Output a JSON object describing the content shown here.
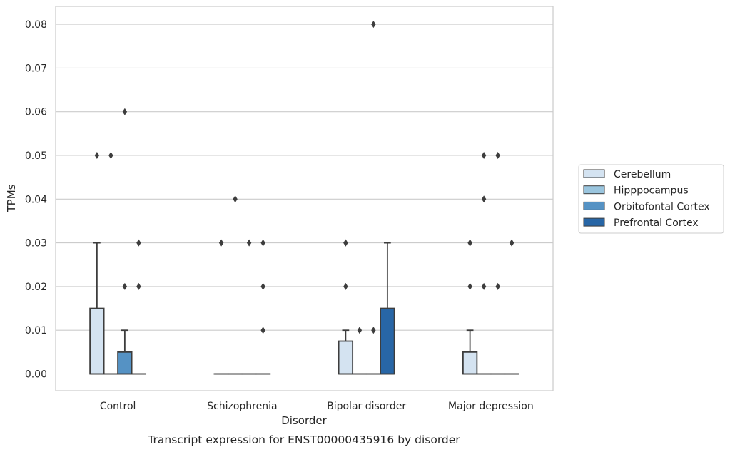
{
  "chart_data": {
    "type": "box",
    "caption": "Transcript expression for ENST00000435916 by disorder",
    "xlabel": "Disorder",
    "ylabel": "TPMs",
    "ylim": [
      -0.004,
      0.084
    ],
    "yticks": [
      "0.00",
      "0.01",
      "0.02",
      "0.03",
      "0.04",
      "0.05",
      "0.06",
      "0.07",
      "0.08"
    ],
    "categories": [
      "Control",
      "Schizophrenia",
      "Bipolar disorder",
      "Major depression"
    ],
    "grid": "horizontal",
    "legend_position": "right",
    "series": [
      {
        "name": "Cerebellum",
        "color": "#d4e3f1",
        "boxes": [
          {
            "q1": 0.0,
            "q3": 0.015,
            "median": 0.0,
            "whisker_low": 0.0,
            "whisker_high": 0.03,
            "outliers": [
              0.05
            ]
          },
          {
            "q1": 0.0,
            "q3": 0.0,
            "median": 0.0,
            "whisker_low": 0.0,
            "whisker_high": 0.0,
            "outliers": [
              0.03
            ]
          },
          {
            "q1": 0.0,
            "q3": 0.0075,
            "median": 0.0,
            "whisker_low": 0.0,
            "whisker_high": 0.01,
            "outliers": [
              0.02,
              0.03,
              0.03
            ]
          },
          {
            "q1": 0.0,
            "q3": 0.005,
            "median": 0.0,
            "whisker_low": 0.0,
            "whisker_high": 0.01,
            "outliers": [
              0.02,
              0.03,
              0.03
            ]
          }
        ]
      },
      {
        "name": "Hipppocampus",
        "color": "#9ac5de",
        "boxes": [
          {
            "q1": 0.0,
            "q3": 0.0,
            "median": 0.0,
            "whisker_low": 0.0,
            "whisker_high": 0.0,
            "outliers": [
              0.05
            ]
          },
          {
            "q1": 0.0,
            "q3": 0.0,
            "median": 0.0,
            "whisker_low": 0.0,
            "whisker_high": 0.0,
            "outliers": [
              0.04
            ]
          },
          {
            "q1": 0.0,
            "q3": 0.0,
            "median": 0.0,
            "whisker_low": 0.0,
            "whisker_high": 0.0,
            "outliers": [
              0.01
            ]
          },
          {
            "q1": 0.0,
            "q3": 0.0,
            "median": 0.0,
            "whisker_low": 0.0,
            "whisker_high": 0.0,
            "outliers": [
              0.02,
              0.04,
              0.05
            ]
          }
        ]
      },
      {
        "name": "Orbitofontal Cortex",
        "color": "#5592c4",
        "boxes": [
          {
            "q1": 0.0,
            "q3": 0.005,
            "median": 0.0,
            "whisker_low": 0.0,
            "whisker_high": 0.01,
            "outliers": [
              0.02,
              0.06
            ]
          },
          {
            "q1": 0.0,
            "q3": 0.0,
            "median": 0.0,
            "whisker_low": 0.0,
            "whisker_high": 0.0,
            "outliers": [
              0.03
            ]
          },
          {
            "q1": 0.0,
            "q3": 0.0,
            "median": 0.0,
            "whisker_low": 0.0,
            "whisker_high": 0.0,
            "outliers": [
              0.01,
              0.08
            ]
          },
          {
            "q1": 0.0,
            "q3": 0.0,
            "median": 0.0,
            "whisker_low": 0.0,
            "whisker_high": 0.0,
            "outliers": [
              0.02,
              0.05
            ]
          }
        ]
      },
      {
        "name": "Prefrontal Cortex",
        "color": "#2866a6",
        "boxes": [
          {
            "q1": 0.0,
            "q3": 0.0,
            "median": 0.0,
            "whisker_low": 0.0,
            "whisker_high": 0.0,
            "outliers": [
              0.02,
              0.03
            ]
          },
          {
            "q1": 0.0,
            "q3": 0.0,
            "median": 0.0,
            "whisker_low": 0.0,
            "whisker_high": 0.0,
            "outliers": [
              0.01,
              0.02,
              0.03
            ]
          },
          {
            "q1": 0.0,
            "q3": 0.015,
            "median": 0.0,
            "whisker_low": 0.0,
            "whisker_high": 0.03,
            "outliers": []
          },
          {
            "q1": 0.0,
            "q3": 0.0,
            "median": 0.0,
            "whisker_low": 0.0,
            "whisker_high": 0.0,
            "outliers": [
              0.03,
              0.03
            ]
          }
        ]
      }
    ]
  }
}
